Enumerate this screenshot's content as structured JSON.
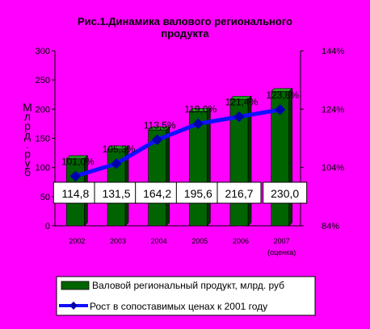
{
  "chart_data": {
    "type": "bar",
    "title_lines": [
      "Рис.1.Динамика валового регионального",
      "продукта"
    ],
    "categories": [
      "2002",
      "2003",
      "2004",
      "2005",
      "2006",
      "2007"
    ],
    "category_sublabels": [
      "",
      "",
      "",
      "",
      "",
      "(оценка)"
    ],
    "ylabel_left_chars": [
      "М",
      "л",
      "р",
      "д",
      ".",
      "р",
      "у",
      "б"
    ],
    "ylim": [
      0,
      300
    ],
    "y_ticks": [
      "0",
      "50",
      "100",
      "150",
      "200",
      "250",
      "300"
    ],
    "y2lim": [
      84,
      144
    ],
    "y2_ticks": [
      "84%",
      "104%",
      "124%",
      "144%"
    ],
    "grid": false,
    "legend_position": "bottom",
    "series": [
      {
        "name": "Валовой региональный продукт, млрд. руб",
        "type": "bar",
        "axis": "left",
        "values": [
          114.8,
          131.5,
          164.2,
          195.6,
          216.7,
          230.0
        ],
        "labels": [
          "114,8",
          "131,5",
          "164,2",
          "195,6",
          "216,7",
          "230,0"
        ],
        "color": "#006400"
      },
      {
        "name": "Рост в сопоставимых ценах к 2001 году",
        "type": "line",
        "axis": "right",
        "values": [
          101.0,
          105.3,
          113.5,
          119.0,
          121.4,
          123.8
        ],
        "labels": [
          "101,0%",
          "105,3%",
          "113,5%",
          "119,0%",
          "121,4%",
          "123,8%"
        ],
        "color": "#1010ff"
      }
    ]
  }
}
